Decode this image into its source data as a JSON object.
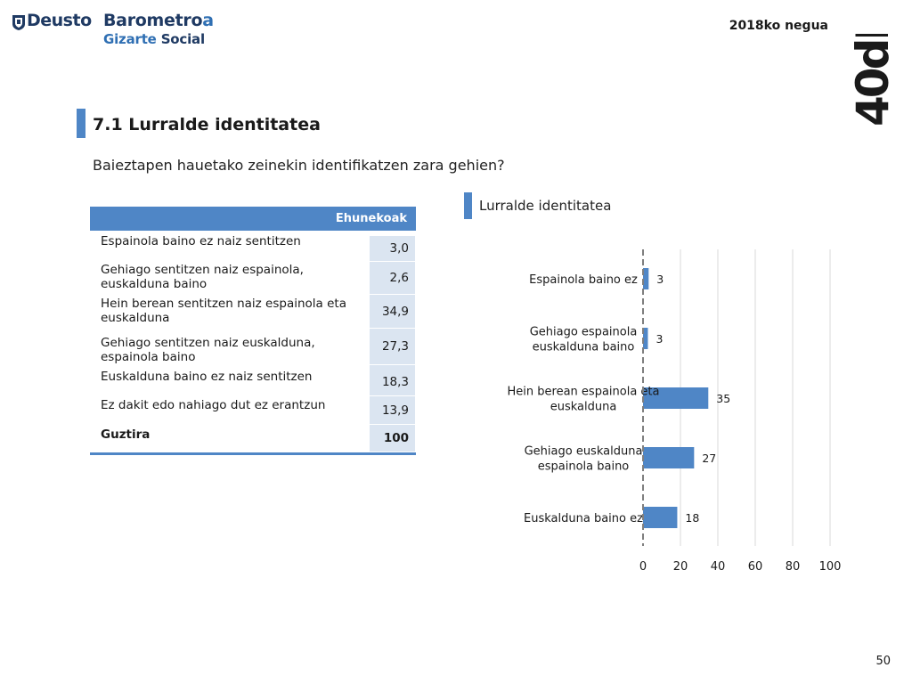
{
  "header": {
    "logo_deusto": "Deusto",
    "logo_barometro_main": "Barometro",
    "logo_barometro_accent": "a",
    "logo_gizarte": "Gizarte",
    "logo_social": "Social",
    "period": "2018ko negua",
    "brand": "40dB."
  },
  "section": {
    "title": "7.1 Lurralde identitatea",
    "question": "Baieztapen hauetako zeinekin identifikatzen zara gehien?"
  },
  "table": {
    "header": "Ehunekoak",
    "rows": [
      {
        "label": "Espainola baino ez naiz sentitzen",
        "value": "3,0"
      },
      {
        "label": "Gehiago sentitzen naiz espainola, euskalduna baino",
        "value": "2,6"
      },
      {
        "label": "Hein berean sentitzen naiz espainola eta euskalduna",
        "value": "34,9"
      },
      {
        "label": "Gehiago sentitzen naiz euskalduna, espainola baino",
        "value": "27,3"
      },
      {
        "label": "Euskalduna baino ez naiz sentitzen",
        "value": "18,3"
      },
      {
        "label": "Ez dakit edo nahiago dut ez erantzun",
        "value": "13,9"
      },
      {
        "label": "Guztira",
        "value": "100"
      }
    ]
  },
  "chart_data": {
    "type": "bar",
    "orientation": "horizontal",
    "title": "Lurralde identitatea",
    "categories": [
      "Espainola baino ez",
      "Gehiago espainola euskalduna baino",
      "Hein berean espainola eta euskalduna",
      "Gehiago euskalduna espainola baino",
      "Euskalduna baino ez"
    ],
    "category_lines": [
      [
        "Espainola baino ez"
      ],
      [
        "Gehiago espainola",
        "euskalduna baino"
      ],
      [
        "Hein berean espainola eta",
        "euskalduna"
      ],
      [
        "Gehiago euskalduna",
        "espainola baino"
      ],
      [
        "Euskalduna baino ez"
      ]
    ],
    "values": [
      3.0,
      2.6,
      34.9,
      27.3,
      18.3
    ],
    "data_labels": [
      "3",
      "3",
      "35",
      "27",
      "18"
    ],
    "xlim": [
      0,
      100
    ],
    "xticks": [
      0,
      20,
      40,
      60,
      80,
      100
    ],
    "xtick_labels": [
      "0",
      "20",
      "40",
      "60",
      "80",
      "100"
    ],
    "grid": true,
    "colors": {
      "bar": "#4f86c6",
      "grid": "#d9d9d9",
      "zero_line": "#7f7f7f"
    }
  },
  "page_number": "50"
}
